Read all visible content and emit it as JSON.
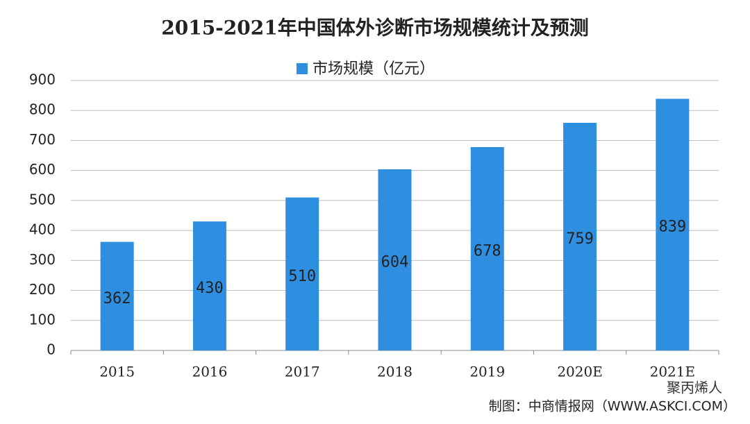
{
  "chart_data": {
    "type": "bar",
    "title": "2015-2021年中国体外诊断市场规模统计及预测",
    "categories": [
      "2015",
      "2016",
      "2017",
      "2018",
      "2019",
      "2020E",
      "2021E"
    ],
    "series": [
      {
        "name": "市场规模（亿元）",
        "color": "#2e8ee0",
        "values": [
          362,
          430,
          510,
          604,
          678,
          759,
          839
        ]
      }
    ],
    "ylim": [
      0,
      900
    ],
    "yticks": [
      0,
      100,
      200,
      300,
      400,
      500,
      600,
      700,
      800,
      900
    ],
    "grid": true,
    "source": "制图：中商情报网（WWW.ASKCI.COM）",
    "overlay": "聚丙烯人"
  }
}
